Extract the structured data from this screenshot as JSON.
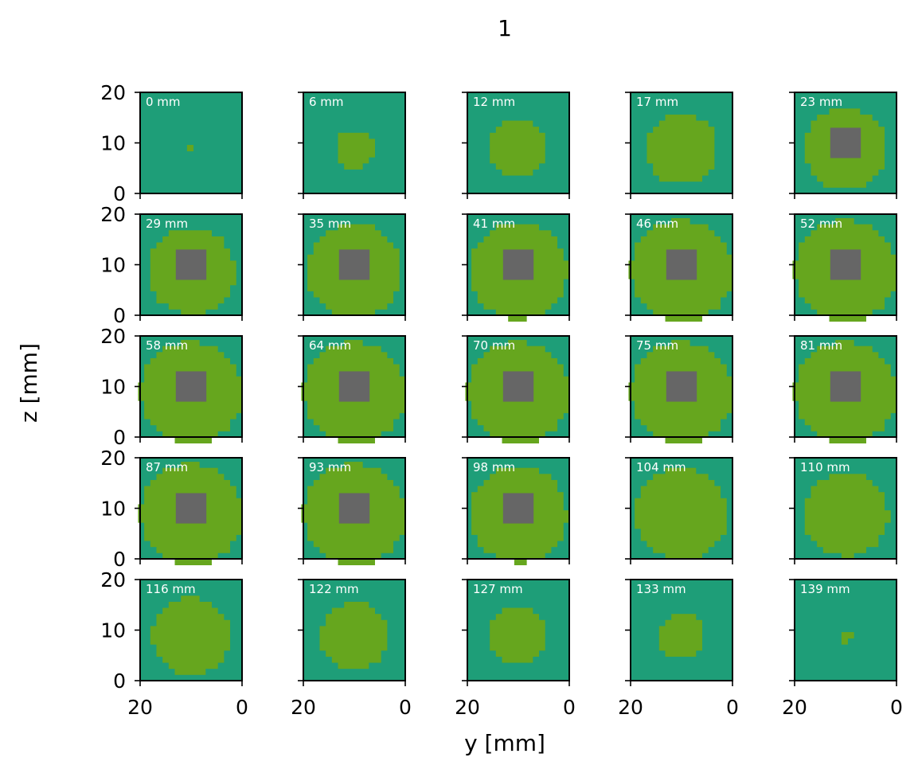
{
  "chart_data": {
    "type": "heatmap",
    "title": "1",
    "xlabel": "y [mm]",
    "ylabel": "z [mm]",
    "xlim": [
      20,
      0
    ],
    "ylim": [
      20,
      0
    ],
    "x_ticks": [
      "20",
      "0"
    ],
    "y_ticks": [
      "0",
      "10",
      "20"
    ],
    "grid": false,
    "colors": {
      "background": "#1e9e78",
      "disk": "#66a61e",
      "core": "#666666",
      "slice_label": "#ffffff"
    },
    "cell_size_mm": 1.2,
    "slices": [
      {
        "label": "0 mm",
        "disk_radius_mm": 0.6,
        "core_half_width_mm": 0
      },
      {
        "label": "6 mm",
        "disk_radius_mm": 3.7,
        "core_half_width_mm": 0
      },
      {
        "label": "12 mm",
        "disk_radius_mm": 5.7,
        "core_half_width_mm": 0
      },
      {
        "label": "17 mm",
        "disk_radius_mm": 7.0,
        "core_half_width_mm": 0
      },
      {
        "label": "23 mm",
        "disk_radius_mm": 8.0,
        "core_half_width_mm": 3.0
      },
      {
        "label": "29 mm",
        "disk_radius_mm": 8.6,
        "core_half_width_mm": 3.0
      },
      {
        "label": "35 mm",
        "disk_radius_mm": 9.3,
        "core_half_width_mm": 3.0
      },
      {
        "label": "41 mm",
        "disk_radius_mm": 9.6,
        "core_half_width_mm": 3.0
      },
      {
        "label": "46 mm",
        "disk_radius_mm": 10.0,
        "core_half_width_mm": 3.0
      },
      {
        "label": "52 mm",
        "disk_radius_mm": 10.0,
        "core_half_width_mm": 3.0
      },
      {
        "label": "58 mm",
        "disk_radius_mm": 10.0,
        "core_half_width_mm": 3.0
      },
      {
        "label": "64 mm",
        "disk_radius_mm": 10.0,
        "core_half_width_mm": 3.0
      },
      {
        "label": "70 mm",
        "disk_radius_mm": 10.0,
        "core_half_width_mm": 3.0
      },
      {
        "label": "75 mm",
        "disk_radius_mm": 10.0,
        "core_half_width_mm": 3.0
      },
      {
        "label": "81 mm",
        "disk_radius_mm": 10.0,
        "core_half_width_mm": 3.0
      },
      {
        "label": "87 mm",
        "disk_radius_mm": 10.0,
        "core_half_width_mm": 3.0
      },
      {
        "label": "93 mm",
        "disk_radius_mm": 10.0,
        "core_half_width_mm": 3.0
      },
      {
        "label": "98 mm",
        "disk_radius_mm": 9.5,
        "core_half_width_mm": 3.0
      },
      {
        "label": "104 mm",
        "disk_radius_mm": 9.0,
        "core_half_width_mm": 0
      },
      {
        "label": "110 mm",
        "disk_radius_mm": 8.3,
        "core_half_width_mm": 0
      },
      {
        "label": "116 mm",
        "disk_radius_mm": 7.6,
        "core_half_width_mm": 0
      },
      {
        "label": "122 mm",
        "disk_radius_mm": 6.7,
        "core_half_width_mm": 0
      },
      {
        "label": "127 mm",
        "disk_radius_mm": 5.7,
        "core_half_width_mm": 0
      },
      {
        "label": "133 mm",
        "disk_radius_mm": 4.6,
        "core_half_width_mm": 0
      },
      {
        "label": "139 mm",
        "disk_radius_mm": 1.4,
        "core_half_width_mm": 0
      }
    ]
  }
}
